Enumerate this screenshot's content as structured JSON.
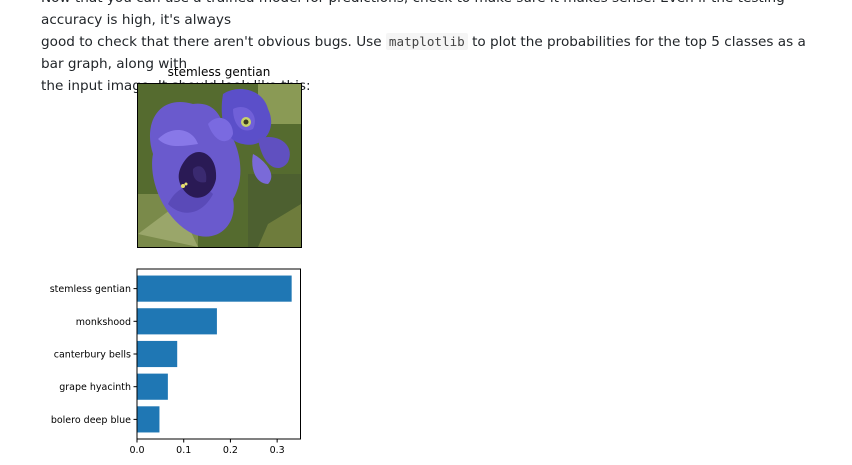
{
  "prose": {
    "line1_text": "Now that you can use a trained model for predictions, check to make sure it makes sense. Even if the testing accuracy is high, it's always",
    "line2_before": "good to check that there aren't obvious bugs. Use ",
    "line2_code": "matplotlib",
    "line2_after": " to plot the probabilities for the top 5 classes as a bar graph, along with",
    "line3_text": "the input image. It should look like this:"
  },
  "figure": {
    "image_title": "stemless gentian"
  },
  "chart_data": {
    "type": "bar",
    "orientation": "horizontal",
    "categories": [
      "stemless gentian",
      "monkshood",
      "canterbury bells",
      "grape hyacinth",
      "bolero deep blue"
    ],
    "values": [
      0.33,
      0.17,
      0.085,
      0.065,
      0.047
    ],
    "xticks": [
      "0.0",
      "0.1",
      "0.2",
      "0.3"
    ],
    "xlim": [
      0,
      0.35
    ],
    "bar_color": "#1f77b4",
    "grid": false
  }
}
